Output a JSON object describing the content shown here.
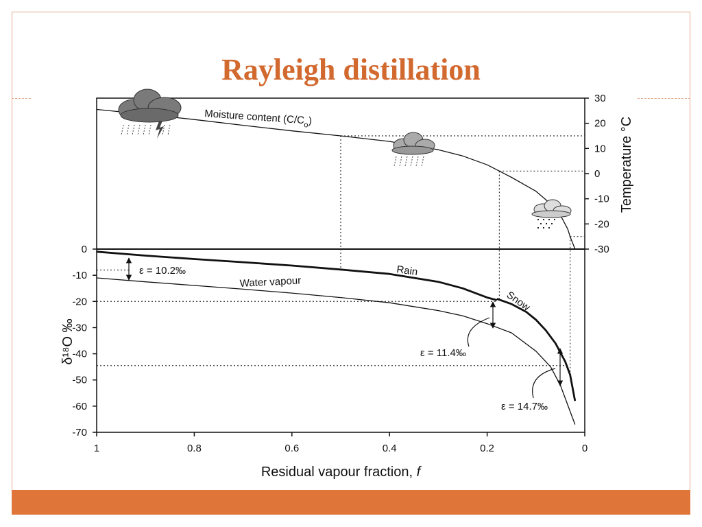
{
  "slide": {
    "title": "Rayleigh distillation",
    "accent_color": "#d2692e",
    "bar_color": "#e0753a",
    "frame_color": "#e3a987"
  },
  "chart_data": {
    "type": "line",
    "xlabel_main": "Residual vapour fraction, ",
    "xlabel_italic": "f",
    "ylabel_left": "δ¹⁸O ‰",
    "ylabel_right": "Temperature °C",
    "x_range": [
      1,
      0
    ],
    "x_ticks": [
      1,
      0.8,
      0.6,
      0.4,
      0.2,
      0
    ],
    "x_tick_labels": [
      "1",
      "0.8",
      "0.6",
      "0.4",
      "0.2",
      "0"
    ],
    "left_ylim": [
      -70,
      0
    ],
    "left_ticks": [
      0,
      -10,
      -20,
      -30,
      -40,
      -50,
      -60,
      -70
    ],
    "right_ylim": [
      -30,
      30
    ],
    "right_ticks": [
      30,
      20,
      10,
      0,
      -10,
      -20,
      -30
    ],
    "series": [
      {
        "name": "Moisture content (C/C₀)",
        "axis": "right",
        "width": 1.3,
        "points": [
          [
            1.0,
            25.5
          ],
          [
            0.9,
            23.6
          ],
          [
            0.8,
            21.5
          ],
          [
            0.7,
            19.2
          ],
          [
            0.6,
            17.0
          ],
          [
            0.5,
            15.0
          ],
          [
            0.4,
            12.8
          ],
          [
            0.3,
            9.5
          ],
          [
            0.25,
            7.0
          ],
          [
            0.2,
            3.5
          ],
          [
            0.175,
            1.0
          ],
          [
            0.15,
            -1.5
          ],
          [
            0.1,
            -7.0
          ],
          [
            0.07,
            -12.0
          ],
          [
            0.05,
            -16.5
          ],
          [
            0.035,
            -22.0
          ],
          [
            0.03,
            -25.0
          ],
          [
            0.02,
            -30.0
          ]
        ]
      },
      {
        "name": "Rain",
        "axis": "left",
        "width": 2.8,
        "points": [
          [
            1.0,
            -1.0
          ],
          [
            0.9,
            -2.5
          ],
          [
            0.8,
            -3.8
          ],
          [
            0.7,
            -5.0
          ],
          [
            0.6,
            -6.3
          ],
          [
            0.5,
            -7.8
          ],
          [
            0.4,
            -9.5
          ],
          [
            0.3,
            -12.5
          ],
          [
            0.25,
            -15.0
          ],
          [
            0.2,
            -18.5
          ],
          [
            0.18,
            -19.5
          ]
        ]
      },
      {
        "name": "Snow",
        "axis": "left",
        "width": 2.8,
        "points": [
          [
            0.18,
            -19.0
          ],
          [
            0.15,
            -21.0
          ],
          [
            0.12,
            -24.0
          ],
          [
            0.1,
            -27.0
          ],
          [
            0.08,
            -31.0
          ],
          [
            0.06,
            -36.0
          ],
          [
            0.04,
            -43.0
          ],
          [
            0.03,
            -48.0
          ],
          [
            0.02,
            -58.0
          ]
        ]
      },
      {
        "name": "Water vapour",
        "axis": "left",
        "width": 1.3,
        "points": [
          [
            1.0,
            -11.0
          ],
          [
            0.9,
            -12.5
          ],
          [
            0.8,
            -13.9
          ],
          [
            0.7,
            -15.3
          ],
          [
            0.6,
            -16.8
          ],
          [
            0.5,
            -18.5
          ],
          [
            0.4,
            -20.5
          ],
          [
            0.3,
            -23.5
          ],
          [
            0.25,
            -25.5
          ],
          [
            0.2,
            -28.5
          ],
          [
            0.15,
            -32.0
          ],
          [
            0.1,
            -39.0
          ],
          [
            0.07,
            -45.0
          ],
          [
            0.05,
            -52.0
          ],
          [
            0.04,
            -57.0
          ],
          [
            0.03,
            -62.0
          ],
          [
            0.02,
            -67.0
          ]
        ]
      }
    ],
    "annotations": {
      "moisture_label": "Moisture content (C/C",
      "moisture_sub": "o",
      "moisture_close": ")",
      "rain_label": "Rain",
      "snow_label": "Snow",
      "vapour_label": "Water vapour",
      "eps1": "ε = 10.2‰",
      "eps2": "ε = 11.4‰",
      "eps3": "ε = 14.7‰"
    }
  }
}
